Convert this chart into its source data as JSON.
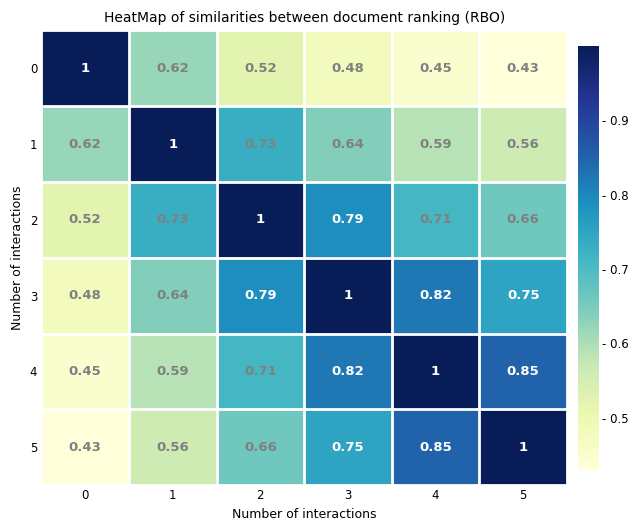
{
  "title": "HeatMap of similarities between document ranking (RBO)",
  "xlabel": "Number of interactions",
  "ylabel": "Number of interactions",
  "matrix": [
    [
      1.0,
      0.62,
      0.52,
      0.48,
      0.45,
      0.43
    ],
    [
      0.62,
      1.0,
      0.73,
      0.64,
      0.59,
      0.56
    ],
    [
      0.52,
      0.73,
      1.0,
      0.79,
      0.71,
      0.66
    ],
    [
      0.48,
      0.64,
      0.79,
      1.0,
      0.82,
      0.75
    ],
    [
      0.45,
      0.59,
      0.71,
      0.82,
      1.0,
      0.85
    ],
    [
      0.43,
      0.56,
      0.66,
      0.75,
      0.85,
      1.0
    ]
  ],
  "tick_labels": [
    "0",
    "1",
    "2",
    "3",
    "4",
    "5"
  ],
  "cmap": "YlGnBu",
  "vmin": 0.43,
  "vmax": 1.0,
  "colorbar_ticks": [
    0.5,
    0.6,
    0.7,
    0.8,
    0.9
  ],
  "colorbar_tick_labels": [
    "- 0.5",
    "- 0.6",
    "- 0.7",
    "- 0.8",
    "- 0.9"
  ],
  "title_fontsize": 10,
  "label_fontsize": 9,
  "tick_fontsize": 8.5,
  "annot_fontsize": 9.5,
  "fig_width": 6.4,
  "fig_height": 5.32,
  "dpi": 100,
  "white_text_threshold": 0.5,
  "dark_text_color": "#808080",
  "white_text_color": "white"
}
